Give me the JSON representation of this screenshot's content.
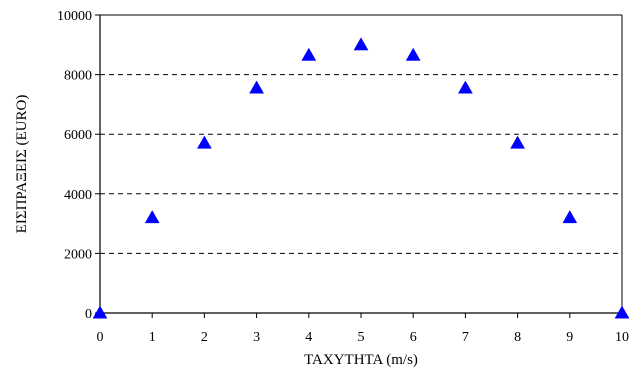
{
  "chart_data": {
    "type": "scatter",
    "title": "",
    "xlabel": "ΤΑΧΥΤΗΤΑ (m/s)",
    "ylabel": "ΕΙΣΠΡΑΞΕΙΣ  (EURO)",
    "xlim": [
      0,
      10
    ],
    "ylim": [
      0,
      10000
    ],
    "x_ticks": [
      0,
      1,
      2,
      3,
      4,
      5,
      6,
      7,
      8,
      9,
      10
    ],
    "y_ticks": [
      0,
      2000,
      4000,
      6000,
      8000,
      10000
    ],
    "y_gridlines": [
      2000,
      4000,
      6000,
      8000
    ],
    "grid": "horizontal dashed",
    "marker": "triangle",
    "marker_color": "#0000ff",
    "series": [
      {
        "points": [
          {
            "x": 0,
            "y": 0
          },
          {
            "x": 1,
            "y": 3200
          },
          {
            "x": 2,
            "y": 5700
          },
          {
            "x": 3,
            "y": 7550
          },
          {
            "x": 4,
            "y": 8650
          },
          {
            "x": 5,
            "y": 9000
          },
          {
            "x": 6,
            "y": 8650
          },
          {
            "x": 7,
            "y": 7550
          },
          {
            "x": 8,
            "y": 5700
          },
          {
            "x": 9,
            "y": 3200
          },
          {
            "x": 10,
            "y": 0
          }
        ]
      }
    ]
  }
}
